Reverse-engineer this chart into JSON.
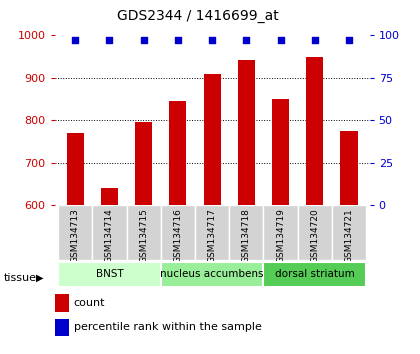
{
  "title": "GDS2344 / 1416699_at",
  "samples": [
    "GSM134713",
    "GSM134714",
    "GSM134715",
    "GSM134716",
    "GSM134717",
    "GSM134718",
    "GSM134719",
    "GSM134720",
    "GSM134721"
  ],
  "counts": [
    770,
    640,
    795,
    845,
    908,
    942,
    850,
    948,
    775
  ],
  "percentiles": [
    97,
    97,
    97,
    97,
    97,
    97,
    97,
    97,
    97
  ],
  "ylim_left": [
    600,
    1000
  ],
  "ylim_right": [
    0,
    100
  ],
  "yticks_left": [
    600,
    700,
    800,
    900,
    1000
  ],
  "yticks_right": [
    0,
    25,
    50,
    75,
    100
  ],
  "bar_color": "#cc0000",
  "dot_color": "#0000cc",
  "bar_width": 0.5,
  "tissue_label": "tissue",
  "legend_count_label": "count",
  "legend_pct_label": "percentile rank within the sample",
  "xlabel_color": "#cc0000",
  "ylabel_right_color": "#0000cc",
  "group_boundaries": [
    [
      0,
      2,
      "BNST",
      "#ccffcc"
    ],
    [
      3,
      5,
      "nucleus accumbens",
      "#99ee99"
    ],
    [
      6,
      8,
      "dorsal striatum",
      "#55cc55"
    ]
  ]
}
